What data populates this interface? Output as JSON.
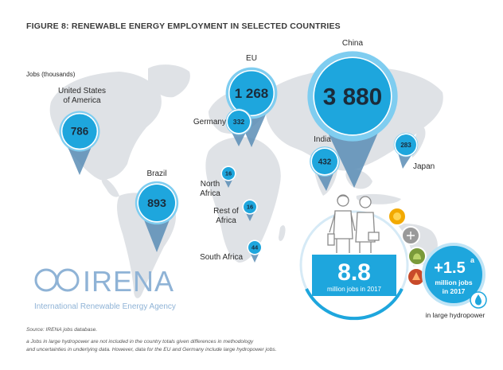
{
  "title": "FIGURE 8: RENEWABLE ENERGY EMPLOYMENT IN SELECTED COUNTRIES",
  "colors": {
    "pin": "#1ea6dd",
    "pin_dark": "#0e7fb6",
    "pin_ring": "#7fcdf0",
    "pin_tail": "#5a8db5",
    "map": "#dfe2e6",
    "text_dark": "#1b2b3a",
    "irena": "#8fb3d6"
  },
  "chart_data": {
    "type": "map-bubble",
    "unit_label": "Jobs (thousands)",
    "points": [
      {
        "region": "United States of America",
        "label_lines": [
          "United States",
          "of America"
        ],
        "value": 786
      },
      {
        "region": "EU",
        "label_lines": [
          "EU"
        ],
        "value": 1268
      },
      {
        "region": "Germany",
        "label_lines": [
          "Germany"
        ],
        "value": 332
      },
      {
        "region": "China",
        "label_lines": [
          "China"
        ],
        "value": 3880
      },
      {
        "region": "India",
        "label_lines": [
          "India"
        ],
        "value": 432
      },
      {
        "region": "Japan",
        "label_lines": [
          "Japan"
        ],
        "value": 283
      },
      {
        "region": "Brazil",
        "label_lines": [
          "Brazil"
        ],
        "value": 893
      },
      {
        "region": "North Africa",
        "label_lines": [
          "North",
          "Africa"
        ],
        "value": 16
      },
      {
        "region": "Rest of Africa",
        "label_lines": [
          "Rest of",
          "Africa"
        ],
        "value": 16
      },
      {
        "region": "South Africa",
        "label_lines": [
          "South Africa"
        ],
        "value": 44
      }
    ],
    "total": {
      "value": "8.8",
      "label": "million jobs in 2017"
    },
    "hydro": {
      "value": "+1.5",
      "superscript": "a",
      "label_lines": [
        "million jobs",
        "in 2017"
      ],
      "caption": "in large hydropower"
    }
  },
  "display_values": [
    "786",
    "1 268",
    "332",
    "3 880",
    "432",
    "283",
    "893",
    "16",
    "16",
    "44"
  ],
  "logo": {
    "name": "IRENA",
    "tagline": "International Renewable Energy Agency"
  },
  "footnotes": {
    "source": "Source: IRENA jobs database.",
    "note_line1": "a Jobs in large hydropower are not included in the country totals given differences in methodology",
    "note_line2": "and uncertainties in underlying data. However, data for the EU and Germany include large hydropower jobs."
  }
}
